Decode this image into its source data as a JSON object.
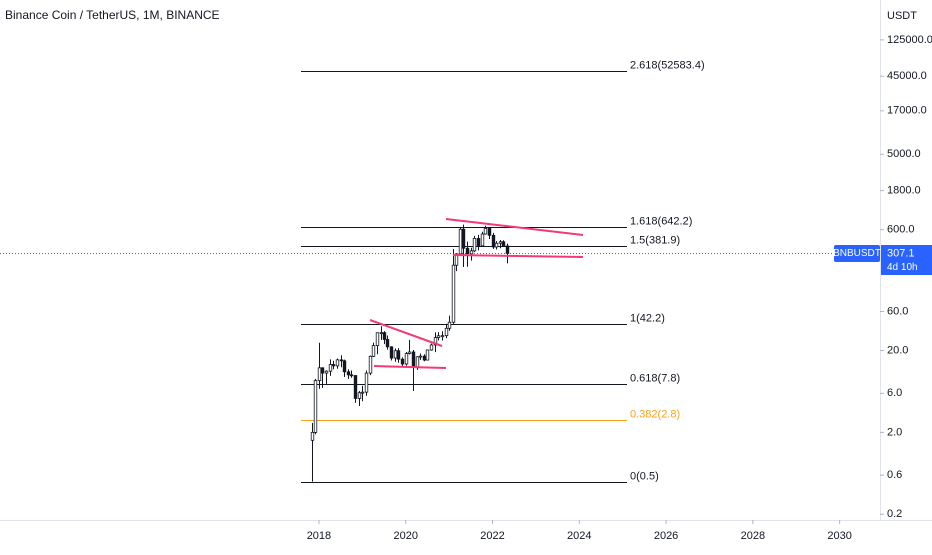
{
  "chart_data": {
    "type": "candlestick",
    "title": "Binance Coin / TetherUS, 1M, BINANCE",
    "y_unit": "USDT",
    "log_scale": true,
    "color_up": "#ffffff",
    "color_down": "#131722",
    "x": [
      2017.83,
      2017.92,
      2018.0,
      2018.08,
      2018.17,
      2018.25,
      2018.33,
      2018.42,
      2018.5,
      2018.58,
      2018.67,
      2018.75,
      2018.83,
      2018.92,
      2019.0,
      2019.08,
      2019.17,
      2019.25,
      2019.33,
      2019.42,
      2019.5,
      2019.58,
      2019.67,
      2019.75,
      2019.83,
      2019.92,
      2020.0,
      2020.08,
      2020.17,
      2020.25,
      2020.33,
      2020.42,
      2020.5,
      2020.58,
      2020.67,
      2020.75,
      2020.83,
      2020.92,
      2021.0,
      2021.08,
      2021.17,
      2021.25,
      2021.33,
      2021.42,
      2021.5,
      2021.58,
      2021.67,
      2021.75,
      2021.83,
      2021.92,
      2022.0,
      2022.08,
      2022.17,
      2022.25,
      2022.33
    ],
    "open": [
      1.6,
      2.0,
      8.6,
      12.3,
      10.6,
      11.2,
      13.5,
      13.0,
      15.4,
      15.0,
      11.0,
      10.1,
      9.9,
      5.2,
      6.1,
      6.2,
      10.6,
      17.0,
      23.0,
      33.0,
      33.1,
      27.3,
      22.2,
      16.2,
      19.9,
      15.7,
      13.7,
      18.4,
      19.2,
      12.4,
      16.8,
      17.1,
      15.3,
      20.3,
      23.4,
      28.8,
      30.3,
      30.4,
      37.4,
      44.4,
      220.6,
      303.6,
      607.2,
      355.7,
      303.8,
      330.3,
      468.8,
      381.4,
      530.7,
      622,
      511.6,
      368.5,
      409.3,
      427,
      379.7
    ],
    "high": [
      2.6,
      9.0,
      24.9,
      12.5,
      11.5,
      15.6,
      15.0,
      16.0,
      17.5,
      15.5,
      11.8,
      11.4,
      10.0,
      6.4,
      7.4,
      11.4,
      17.4,
      25.0,
      33.0,
      39.6,
      34.5,
      30.5,
      22.6,
      21.2,
      21.4,
      16.5,
      19.2,
      27.0,
      20.3,
      17.0,
      18.4,
      18.0,
      20.6,
      24.3,
      33.4,
      33.6,
      34.4,
      42.5,
      53.4,
      348.7,
      307.5,
      638.7,
      690.9,
      428,
      361,
      503.4,
      518.9,
      565,
      669,
      633,
      548,
      434,
      448,
      446,
      407
    ],
    "low": [
      0.5,
      1.9,
      6.8,
      7.0,
      7.6,
      9.8,
      11.8,
      12.0,
      12.5,
      9.5,
      9.0,
      9.3,
      4.6,
      4.2,
      4.8,
      5.6,
      10.0,
      16.6,
      18.0,
      27.0,
      24.0,
      20.5,
      15.1,
      14.6,
      14.2,
      12.8,
      13.1,
      17.9,
      6.4,
      11.6,
      15.4,
      14.8,
      15.1,
      19.9,
      19.1,
      26.6,
      26.5,
      28.3,
      34.8,
      42.3,
      186.6,
      295,
      210,
      211,
      251.4,
      318.6,
      334.6,
      373,
      522,
      461,
      349,
      343,
      356,
      371,
      232
    ],
    "close": [
      2.0,
      8.6,
      12.3,
      10.6,
      11.2,
      13.5,
      13.0,
      15.4,
      15.0,
      11.0,
      10.1,
      9.9,
      5.2,
      6.1,
      6.2,
      10.6,
      17.0,
      23.0,
      33.0,
      33.1,
      27.3,
      22.2,
      16.2,
      19.9,
      15.7,
      13.7,
      18.4,
      19.2,
      12.4,
      16.8,
      17.1,
      15.3,
      20.3,
      23.4,
      28.8,
      30.3,
      30.4,
      37.4,
      44.4,
      220.6,
      303.6,
      607.2,
      355.7,
      303.8,
      330.3,
      468.8,
      381.4,
      530.7,
      622,
      511.6,
      368.5,
      409.3,
      427,
      379.7,
      307.1
    ],
    "xlim": [
      2010.65,
      2030.93
    ],
    "xticks": [
      2018,
      2020,
      2022,
      2024,
      2026,
      2028,
      2030
    ],
    "ylim": [
      0.17,
      384000
    ],
    "yticks": [
      {
        "value": 125000,
        "label": "125000.0"
      },
      {
        "value": 45000,
        "label": "45000.0"
      },
      {
        "value": 17000,
        "label": "17000.0"
      },
      {
        "value": 5000,
        "label": "5000.0"
      },
      {
        "value": 1800,
        "label": "1800.0"
      },
      {
        "value": 600,
        "label": "600.0"
      },
      {
        "value": 60,
        "label": "60.0"
      },
      {
        "value": 20,
        "label": "20.0"
      },
      {
        "value": 6,
        "label": "6.0"
      },
      {
        "value": 2,
        "label": "2.0"
      },
      0.6,
      0.2
    ],
    "fib_levels": [
      {
        "value": 52583.4,
        "label": "2.618(52583.4)",
        "color": "#131722"
      },
      {
        "value": 642.2,
        "label": "1.618(642.2)",
        "color": "#131722"
      },
      {
        "value": 381.9,
        "label": "1.5(381.9)",
        "color": "#131722"
      },
      {
        "value": 42.2,
        "label": "1(42.2)",
        "color": "#131722"
      },
      {
        "value": 7.8,
        "label": "0.618(7.8)",
        "color": "#131722"
      },
      {
        "value": 2.8,
        "label": "0.382(2.8)",
        "color": "#f7a21b"
      },
      {
        "value": 0.5,
        "label": "0(0.5)",
        "color": "#131722"
      }
    ],
    "last_price": {
      "symbol": "BNBUSDT",
      "value": 307.1,
      "countdown": "4d 10h",
      "color": "#2962ff"
    }
  }
}
